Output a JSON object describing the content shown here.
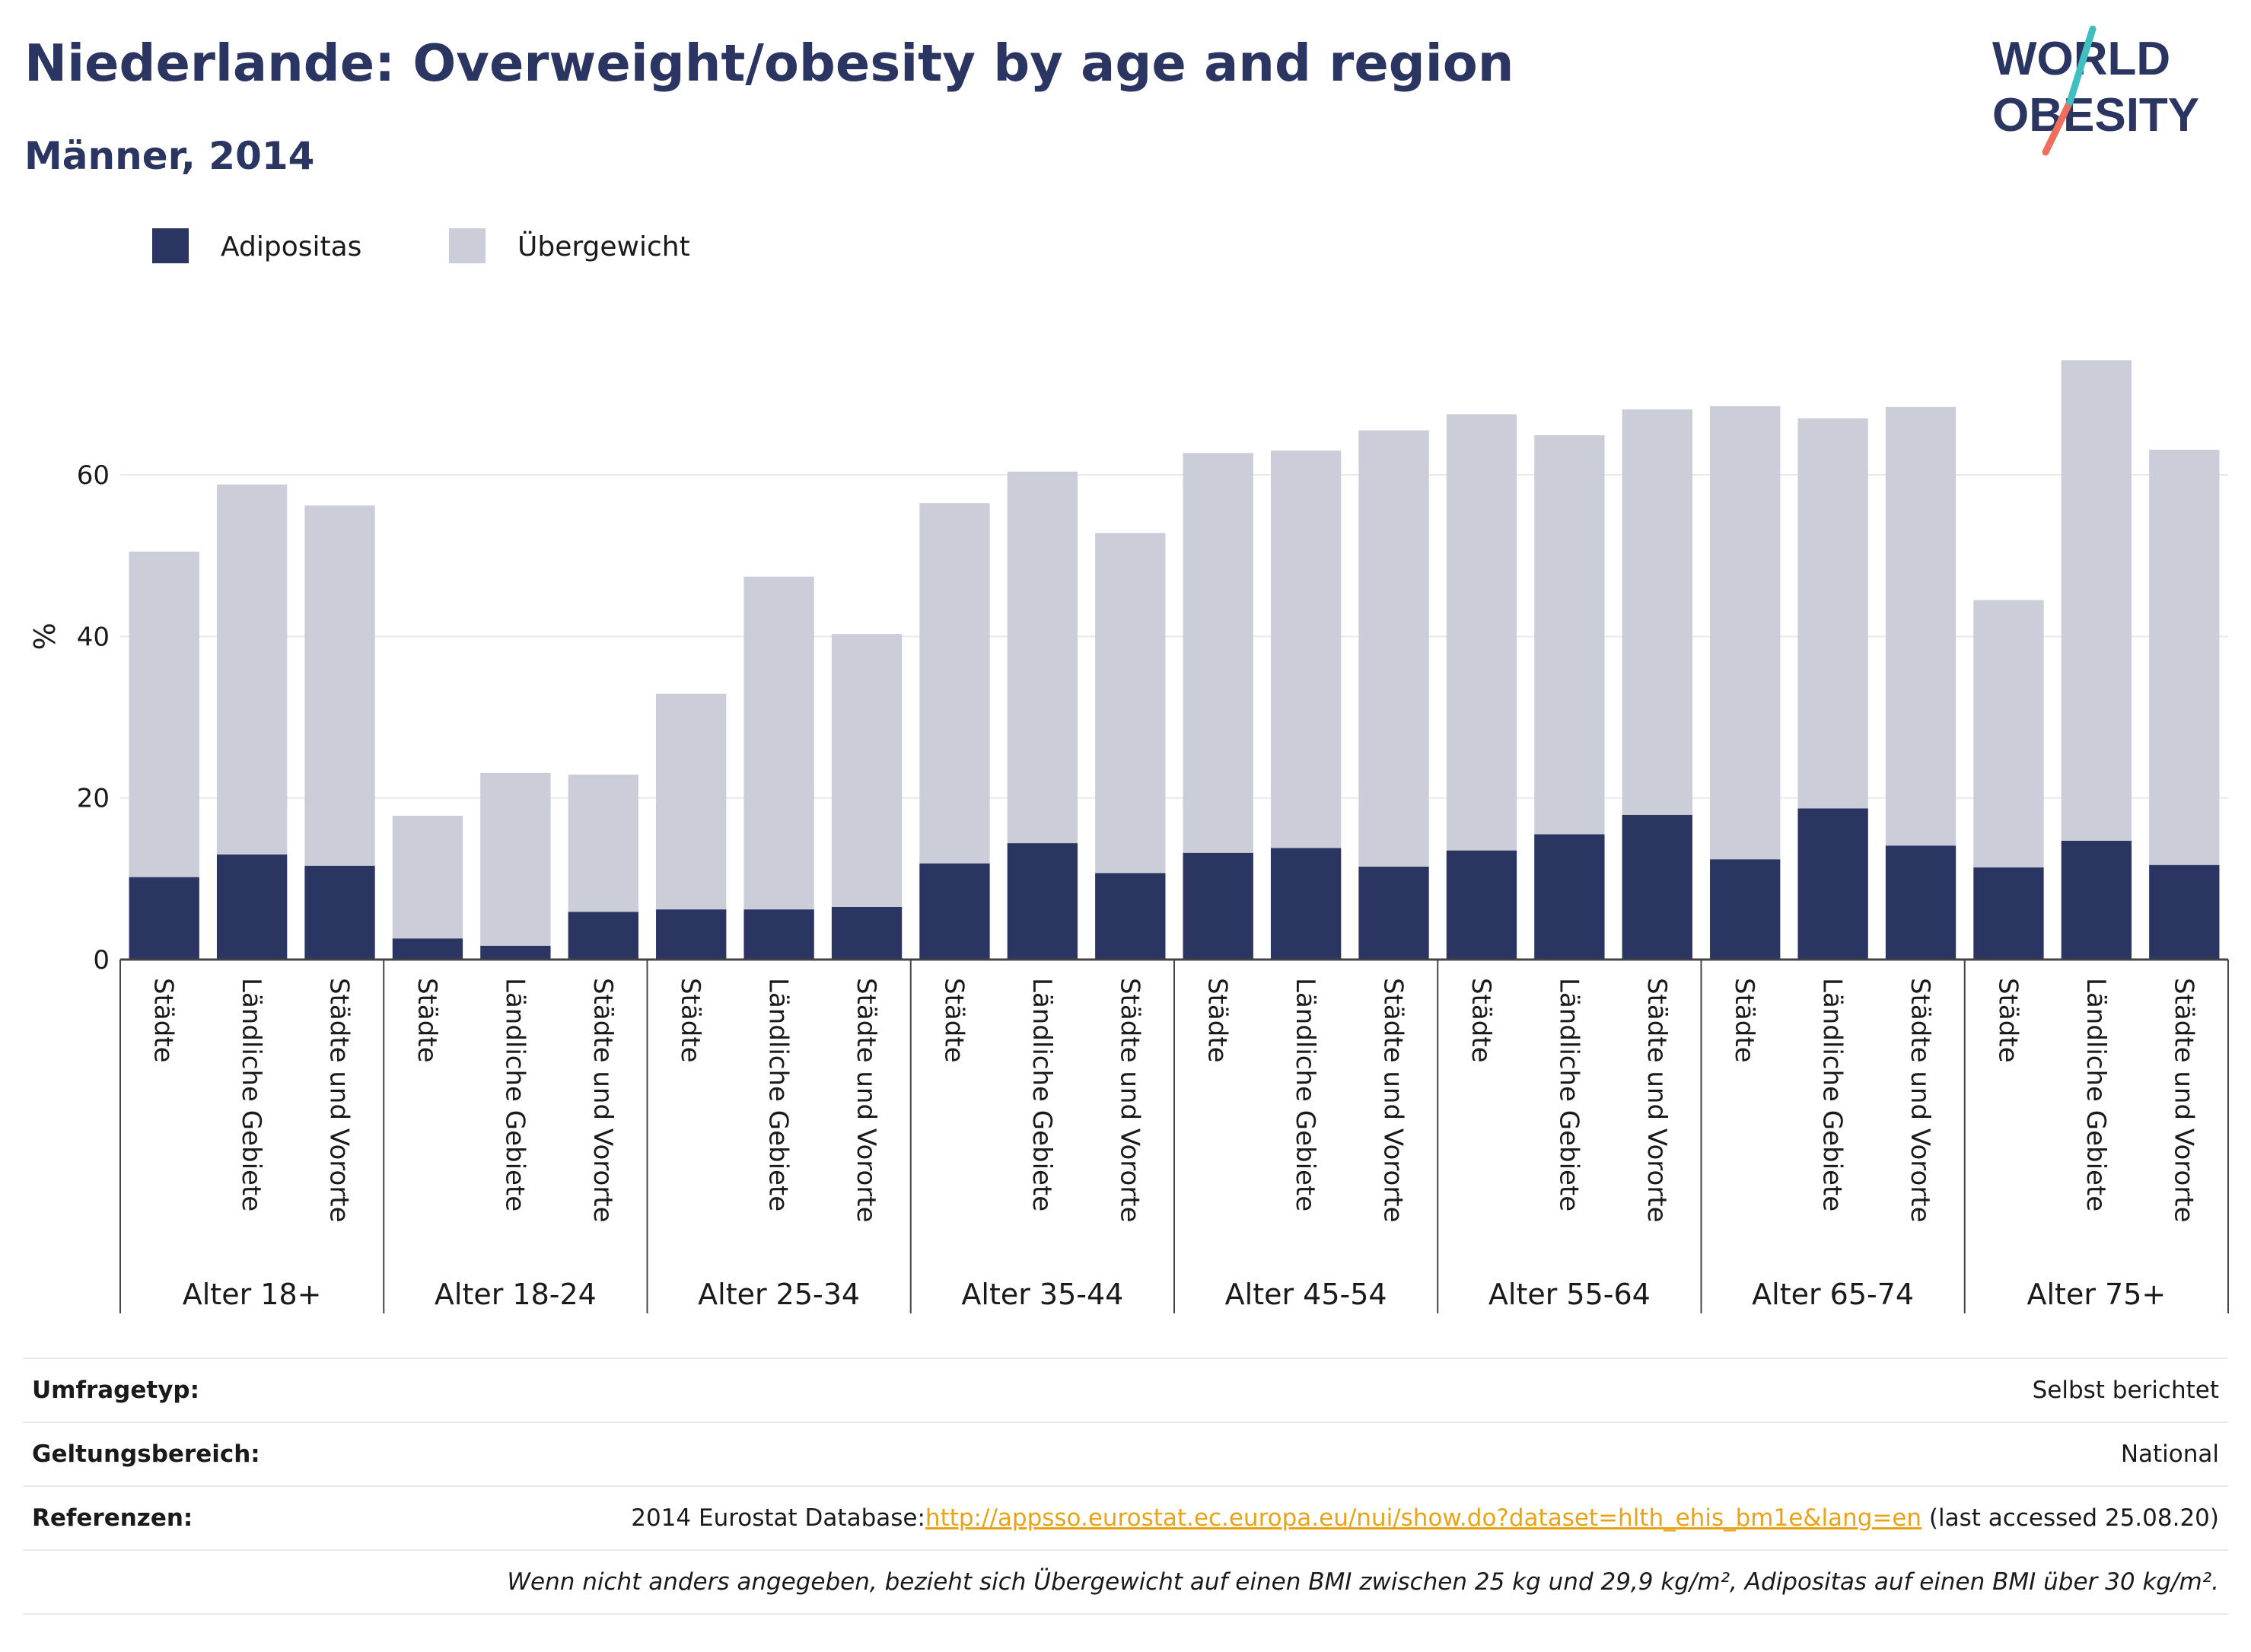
{
  "title": "Niederlande: Overweight/obesity by age and region",
  "subtitle": "Männer, 2014",
  "logo": {
    "line1": "WORLD",
    "line2": "OBESITY"
  },
  "colors": {
    "obesity": "#2b3561",
    "overweight": "#cbcdd8",
    "title": "#2b3561",
    "logo_accent_teal": "#3fbfbf",
    "logo_accent_coral": "#ef6f5f",
    "link": "#e8a317"
  },
  "chart_data": {
    "type": "bar",
    "stacked": true,
    "ylabel": "%",
    "ylim": [
      0,
      75
    ],
    "yticks": [
      0,
      20,
      40,
      60
    ],
    "grid": true,
    "legend_position": "top-left",
    "groups": [
      "Alter 18+",
      "Alter 18-24",
      "Alter 25-34",
      "Alter 35-44",
      "Alter 45-54",
      "Alter 55-64",
      "Alter 65-74",
      "Alter 75+"
    ],
    "subcategories": [
      "Städte",
      "Ländliche Gebiete",
      "Städte und Vororte"
    ],
    "series": [
      {
        "name": "Adipositas",
        "values": [
          10.2,
          13.0,
          11.6,
          2.6,
          1.7,
          5.9,
          6.2,
          6.2,
          6.5,
          11.9,
          14.4,
          10.7,
          13.2,
          13.8,
          11.5,
          13.5,
          15.5,
          17.9,
          12.4,
          18.7,
          14.1,
          11.4,
          14.7,
          11.7
        ]
      },
      {
        "name": "Übergewicht",
        "values": [
          40.3,
          45.8,
          44.6,
          15.2,
          21.4,
          17.0,
          26.7,
          41.2,
          33.8,
          44.6,
          46.0,
          42.1,
          49.5,
          49.2,
          54.0,
          54.0,
          49.4,
          50.2,
          56.1,
          48.3,
          54.3,
          33.1,
          59.5,
          51.4
        ]
      }
    ]
  },
  "meta": {
    "survey_label": "Umfragetyp:",
    "survey_value": "Selbst berichtet",
    "scope_label": "Geltungsbereich:",
    "scope_value": "National",
    "ref_label": "Referenzen:",
    "ref_prefix": "2014 Eurostat Database:",
    "ref_link": "http://appsso.eurostat.ec.europa.eu/nui/show.do?dataset=hlth_ehis_bm1e&lang=en",
    "ref_suffix": " (last accessed 25.08.20)",
    "note": "Wenn nicht anders angegeben, bezieht sich Übergewicht auf einen BMI zwischen 25 kg und 29,9 kg/m², Adipositas auf einen BMI über 30 kg/m²."
  }
}
